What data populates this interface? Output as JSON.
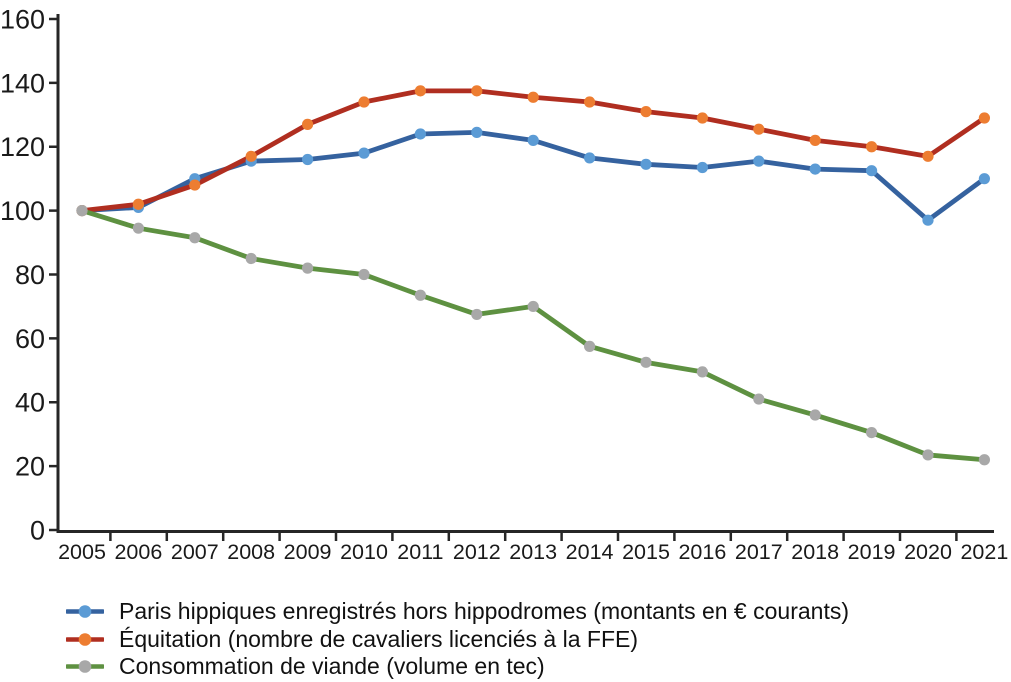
{
  "chart_data": {
    "type": "line",
    "title": "",
    "xlabel": "",
    "ylabel": "",
    "x": [
      "2005",
      "2006",
      "2007",
      "2008",
      "2009",
      "2010",
      "2011",
      "2012",
      "2013",
      "2014",
      "2015",
      "2016",
      "2017",
      "2018",
      "2019",
      "2020",
      "2021"
    ],
    "y_ticks": [
      0,
      20,
      40,
      60,
      80,
      100,
      120,
      140,
      160
    ],
    "ylim": [
      0,
      160
    ],
    "grid": false,
    "legend_position": "bottom-left",
    "axis_color": "#262626",
    "tick_label_color": "#1a1a1a",
    "series": [
      {
        "name": "Paris hippiques enregistrés hors hippodromes (montants en € courants)",
        "line_color": "#35629F",
        "marker_color": "#5B9BD5",
        "values": [
          100,
          101,
          110,
          115.5,
          116,
          118,
          124,
          124.5,
          122,
          116.5,
          114.5,
          113.5,
          115.5,
          113,
          112.5,
          97,
          110
        ]
      },
      {
        "name": "Équitation (nombre de cavaliers licenciés à la FFE)",
        "line_color": "#B02E20",
        "marker_color": "#ED7D31",
        "values": [
          100,
          102,
          108,
          117,
          127,
          134,
          137.5,
          137.5,
          135.5,
          134,
          131,
          129,
          125.5,
          122,
          120,
          117,
          129
        ]
      },
      {
        "name": "Consommation de viande (volume en tec)",
        "line_color": "#5E9141",
        "marker_color": "#A8A8A8",
        "values": [
          100,
          94.5,
          91.5,
          85,
          82,
          80,
          73.5,
          67.5,
          70,
          57.5,
          52.5,
          49.5,
          41,
          36,
          30.5,
          23.5,
          22
        ]
      }
    ]
  }
}
